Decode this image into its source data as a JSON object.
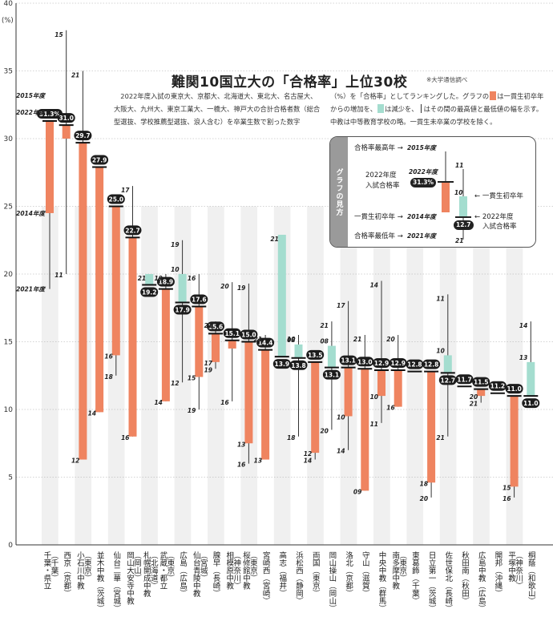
{
  "header": {
    "title": "難関10国立大の「合格率」上位30校",
    "source": "※大学通信調べ",
    "description_left": "2022年度入試の東京大、京都大、北海道大、東北大、名古屋大、大阪大、九州大、東京工業大、一橋大、神戸大の合計合格者数（総合型選抜、学校推薦型選抜、浪人含む）を卒業生数で割った数字",
    "description_right_1": "（%）を「合格率」としてランキングした。グラフの",
    "description_right_2": "は一貫生初卒年か",
    "description_right_3": "らの増加を、",
    "description_right_4": "は減少を、",
    "description_right_5": "はその間の最高値と最低値の幅を示す。",
    "description_right_6": "中教は中等教育学校の略。一貫生未卒業の学校を除く。"
  },
  "legend": {
    "side_label": "グラフの見方",
    "max_year": "合格率最高年 →",
    "max_year_val": "2015年度",
    "rate_label_1": "2022年度",
    "rate_label_2": "入試合格率",
    "rate_pill": "31.3%",
    "rate_year": "2022年度",
    "first_grad_year": "一貫生初卒年 →",
    "first_grad_year_val": "2014年度",
    "min_year": "合格率最低年 →",
    "min_year_val": "2021年度",
    "right_first_grad": "← 一貫生初卒年",
    "right_rate_1": "← 2022年度",
    "right_rate_2": "入試合格率",
    "example_top": "11",
    "example_mid": "10",
    "example_pill": "12.7",
    "example_bottom": "21"
  },
  "chart_data": {
    "type": "bar",
    "title": "難関10国立大の「合格率」上位30校",
    "ylabel": "(%)",
    "ylim": [
      0,
      40
    ],
    "yticks": [
      "0",
      "5",
      "10",
      "15",
      "20",
      "25",
      "30",
      "35",
      "40"
    ],
    "colors": {
      "increase": "#ef8460",
      "decrease": "#a4ddcf",
      "band": "#f0f0f0",
      "line": "#333333"
    },
    "first_school_annotations": {
      "max_year": "2015年度",
      "rate_year": "2022年度",
      "first_year": "2014年度",
      "min_year": "2021年度"
    },
    "schools": [
      {
        "name": "千葉・県立",
        "region": "（千葉）",
        "rate": 31.3,
        "label": "31.3%",
        "first": 24.5,
        "max": 31.3,
        "min": 18.9,
        "max_year": "",
        "first_year": "",
        "min_year": ""
      },
      {
        "name": "西京",
        "region": "（京都）",
        "rate": 31.0,
        "label": "31.0",
        "first": 30.0,
        "max": 38.0,
        "min": 20.0,
        "max_year": "15",
        "first_year": "",
        "min_year": "11"
      },
      {
        "name": "小石川中教",
        "region": "（東京）",
        "rate": 29.7,
        "label": "29.7",
        "first": 6.3,
        "max": 35.0,
        "min": 6.3,
        "max_year": "21",
        "first_year": "",
        "min_year": "12"
      },
      {
        "name": "並木中教",
        "region": "（茨城）",
        "rate": 27.9,
        "label": "27.9",
        "first": 9.8,
        "max": 27.9,
        "min": 9.8,
        "max_year": "",
        "first_year": "",
        "min_year": "14"
      },
      {
        "name": "仙台二華",
        "region": "（宮城）",
        "rate": 25.0,
        "label": "25.0",
        "first": 14.0,
        "max": 25.0,
        "min": 12.5,
        "max_year": "",
        "first_year": "16",
        "min_year": "18"
      },
      {
        "name": "岡山大安寺中教",
        "region": "（岡山）",
        "rate": 22.7,
        "label": "22.7",
        "first": 8.0,
        "max": 26.5,
        "min": 8.0,
        "max_year": "17",
        "first_year": "",
        "min_year": "16"
      },
      {
        "name": "札幌開成中教",
        "region": "（北海道）",
        "rate": 19.2,
        "label": "19.2",
        "first": 20.0,
        "max": 20.0,
        "min": 19.2,
        "max_year": "21",
        "first_year": "",
        "min_year": ""
      },
      {
        "name": "武蔵・都立",
        "region": "（東京）",
        "rate": 18.9,
        "label": "18.9",
        "first": 10.6,
        "max": 20.0,
        "min": 10.6,
        "max_year": "19",
        "first_year": "",
        "min_year": "14"
      },
      {
        "name": "広島",
        "region": "（広島）",
        "rate": 17.9,
        "label": "17.9",
        "first": 20.0,
        "max": 22.5,
        "min": 12.0,
        "max_year": "19",
        "first_year": "10",
        "min_year": "12"
      },
      {
        "name": "仙台青陵中教",
        "region": "（宮城）",
        "rate": 17.6,
        "label": "17.6",
        "first": 12.4,
        "max": 20.0,
        "min": 10.0,
        "max_year": "16",
        "first_year": "15",
        "min_year": "19"
      },
      {
        "name": "腺早",
        "region": "（長崎）",
        "rate": 15.6,
        "label": "15.6",
        "first": 13.5,
        "max": 16.5,
        "min": 13.0,
        "max_year": "21",
        "first_year": "17",
        "min_year": "19"
      },
      {
        "name": "相模原中教",
        "region": "（神奈川）",
        "rate": 15.1,
        "label": "15.1",
        "first": 14.5,
        "max": 19.4,
        "min": 10.6,
        "max_year": "20",
        "first_year": "",
        "min_year": "16"
      },
      {
        "name": "桜修館中教",
        "region": "（東京）",
        "rate": 15.0,
        "label": "15.0",
        "first": 7.5,
        "max": 19.3,
        "min": 6.0,
        "max_year": "19",
        "first_year": "13",
        "min_year": "16"
      },
      {
        "name": "宮崎西",
        "region": "（宮崎）",
        "rate": 14.4,
        "label": "14.4",
        "first": 6.3,
        "max": 15.5,
        "min": 6.3,
        "max_year": "21",
        "first_year": "",
        "min_year": "13"
      },
      {
        "name": "高志",
        "region": "（福井）",
        "rate": 13.9,
        "label": "13.9",
        "first": 22.9,
        "max": 22.9,
        "min": 13.9,
        "max_year": "21",
        "first_year": "",
        "min_year": ""
      },
      {
        "name": "浜松西",
        "region": "（静岡）",
        "rate": 13.8,
        "label": "13.8",
        "first": 14.8,
        "max": 15.5,
        "min": 8.0,
        "max_year": "10",
        "first_year": "08",
        "min_year": "18"
      },
      {
        "name": "両国",
        "region": "（東京）",
        "rate": 13.5,
        "label": "13.5",
        "first": 6.8,
        "max": 13.5,
        "min": 6.3,
        "max_year": "",
        "first_year": "12",
        "min_year": "14"
      },
      {
        "name": "岡山操山",
        "region": "（岡山）",
        "rate": 13.1,
        "label": "13.1",
        "first": 14.7,
        "max": 16.5,
        "min": 8.5,
        "max_year": "21",
        "first_year": "08",
        "min_year": "20"
      },
      {
        "name": "洛北",
        "region": "（京都）",
        "rate": 13.1,
        "label": "13.1",
        "first": 9.5,
        "max": 18.0,
        "min": 7.0,
        "max_year": "17",
        "first_year": "10",
        "min_year": "14"
      },
      {
        "name": "守山",
        "region": "（滋賀）",
        "rate": 13.0,
        "label": "13.0",
        "first": 4.0,
        "max": 15.5,
        "min": 4.0,
        "max_year": "21",
        "first_year": "",
        "min_year": "09"
      },
      {
        "name": "中央中教",
        "region": "（群馬）",
        "rate": 12.9,
        "label": "12.9",
        "first": 11.0,
        "max": 19.5,
        "min": 9.0,
        "max_year": "14",
        "first_year": "10",
        "min_year": "11"
      },
      {
        "name": "南多摩中教",
        "region": "（東京）",
        "rate": 12.9,
        "label": "12.9",
        "first": 10.2,
        "max": 15.5,
        "min": 10.2,
        "max_year": "20",
        "first_year": "",
        "min_year": "16"
      },
      {
        "name": "東葛飾",
        "region": "（千葉）",
        "rate": 12.8,
        "label": "12.8",
        "first": 12.8,
        "max": 12.8,
        "min": 12.8,
        "max_year": "",
        "first_year": "",
        "min_year": ""
      },
      {
        "name": "日立第一",
        "region": "（茨城）",
        "rate": 12.8,
        "label": "12.8",
        "first": 4.6,
        "max": 12.8,
        "min": 3.5,
        "max_year": "",
        "first_year": "18",
        "min_year": "20"
      },
      {
        "name": "佐世保北",
        "region": "（長崎）",
        "rate": 12.7,
        "label": "12.7",
        "first": 14.0,
        "max": 18.5,
        "min": 8.0,
        "max_year": "11",
        "first_year": "10",
        "min_year": "21"
      },
      {
        "name": "秋田南",
        "region": "（秋田）",
        "rate": 11.7,
        "label": "11.7",
        "first": 11.7,
        "max": 11.7,
        "min": 11.7,
        "max_year": "",
        "first_year": "",
        "min_year": ""
      },
      {
        "name": "広島中教",
        "region": "（広島）",
        "rate": 11.5,
        "label": "11.5",
        "first": 11.0,
        "max": 11.5,
        "min": 10.5,
        "max_year": "",
        "first_year": "20",
        "min_year": "21"
      },
      {
        "name": "開邦",
        "region": "（沖縄）",
        "rate": 11.2,
        "label": "11.2",
        "first": 11.2,
        "max": 11.2,
        "min": 11.2,
        "max_year": "",
        "first_year": "",
        "min_year": ""
      },
      {
        "name": "平塚中教",
        "region": "（神奈川）",
        "rate": 11.0,
        "label": "11.0",
        "first": 4.3,
        "max": 11.0,
        "min": 3.5,
        "max_year": "",
        "first_year": "15",
        "min_year": "16"
      },
      {
        "name": "桐蔭",
        "region": "（和歌山）",
        "rate": 11.0,
        "label": "11.0",
        "first": 13.5,
        "max": 16.5,
        "min": 11.0,
        "max_year": "14",
        "first_year": "13",
        "min_year": ""
      }
    ]
  }
}
